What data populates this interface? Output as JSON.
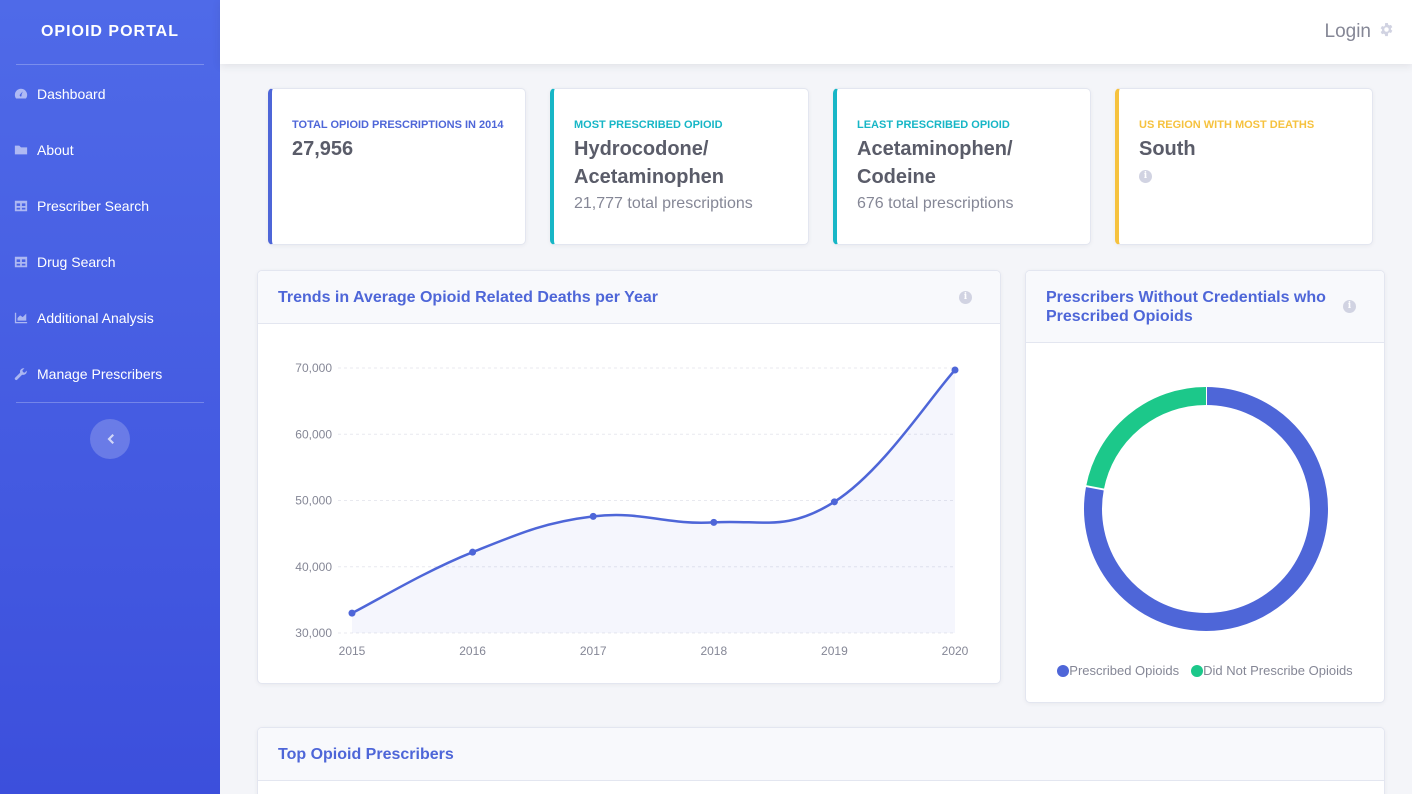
{
  "sidebar": {
    "brand": "OPIOID PORTAL",
    "items": [
      {
        "label": "Dashboard",
        "icon": "tachometer-icon"
      },
      {
        "label": "About",
        "icon": "folder-icon"
      },
      {
        "label": "Prescriber Search",
        "icon": "table-icon"
      },
      {
        "label": "Drug Search",
        "icon": "table-icon"
      },
      {
        "label": "Additional Analysis",
        "icon": "area-chart-icon"
      },
      {
        "label": "Manage Prescribers",
        "icon": "wrench-icon"
      }
    ],
    "toggle_icon": "chevron-left-icon"
  },
  "topbar": {
    "login_label": "Login",
    "gear_icon": "gear-icon"
  },
  "cards": [
    {
      "label": "TOTAL OPIOID PRESCRIPTIONS IN 2014",
      "value": "27,956",
      "sub": "",
      "color": "#4e66d8"
    },
    {
      "label": "MOST PRESCRIBED OPIOID",
      "value": "Hydrocodone/ Acetaminophen",
      "sub": "21,777 total prescriptions",
      "color": "#17b6c6"
    },
    {
      "label": "LEAST PRESCRIBED OPIOID",
      "value": "Acetaminophen/ Codeine",
      "sub": "676 total prescriptions",
      "color": "#17b6c6"
    },
    {
      "label": "US REGION WITH MOST DEATHS",
      "value": "South",
      "sub": "",
      "color": "#f6c23e"
    }
  ],
  "line_panel": {
    "title": "Trends in Average Opioid Related Deaths per Year"
  },
  "donut_panel": {
    "title": "Prescribers Without Credentials who Prescribed Opioids"
  },
  "bottom_panel": {
    "title": "Top Opioid Prescribers"
  },
  "colors": {
    "primary": "#4e66d8",
    "teal": "#17b6c6",
    "yellow": "#f6c23e",
    "green": "#1cc88a"
  },
  "chart_data": [
    {
      "type": "line",
      "x": [
        "2015",
        "2016",
        "2017",
        "2018",
        "2019",
        "2020"
      ],
      "series": [
        {
          "values": [
            33000,
            42200,
            47600,
            46700,
            49800,
            69700
          ]
        }
      ],
      "yticks": [
        "70,000",
        "60,000",
        "50,000",
        "40,000",
        "30,000"
      ],
      "ylim": [
        30000,
        70000
      ],
      "grid": true
    },
    {
      "type": "pie",
      "labels": [
        "Prescribed Opioids",
        "Did Not Prescribe Opioids"
      ],
      "values": [
        78,
        22
      ],
      "colors": [
        "#4e66d8",
        "#1cc88a"
      ],
      "legend": "bottom"
    }
  ]
}
